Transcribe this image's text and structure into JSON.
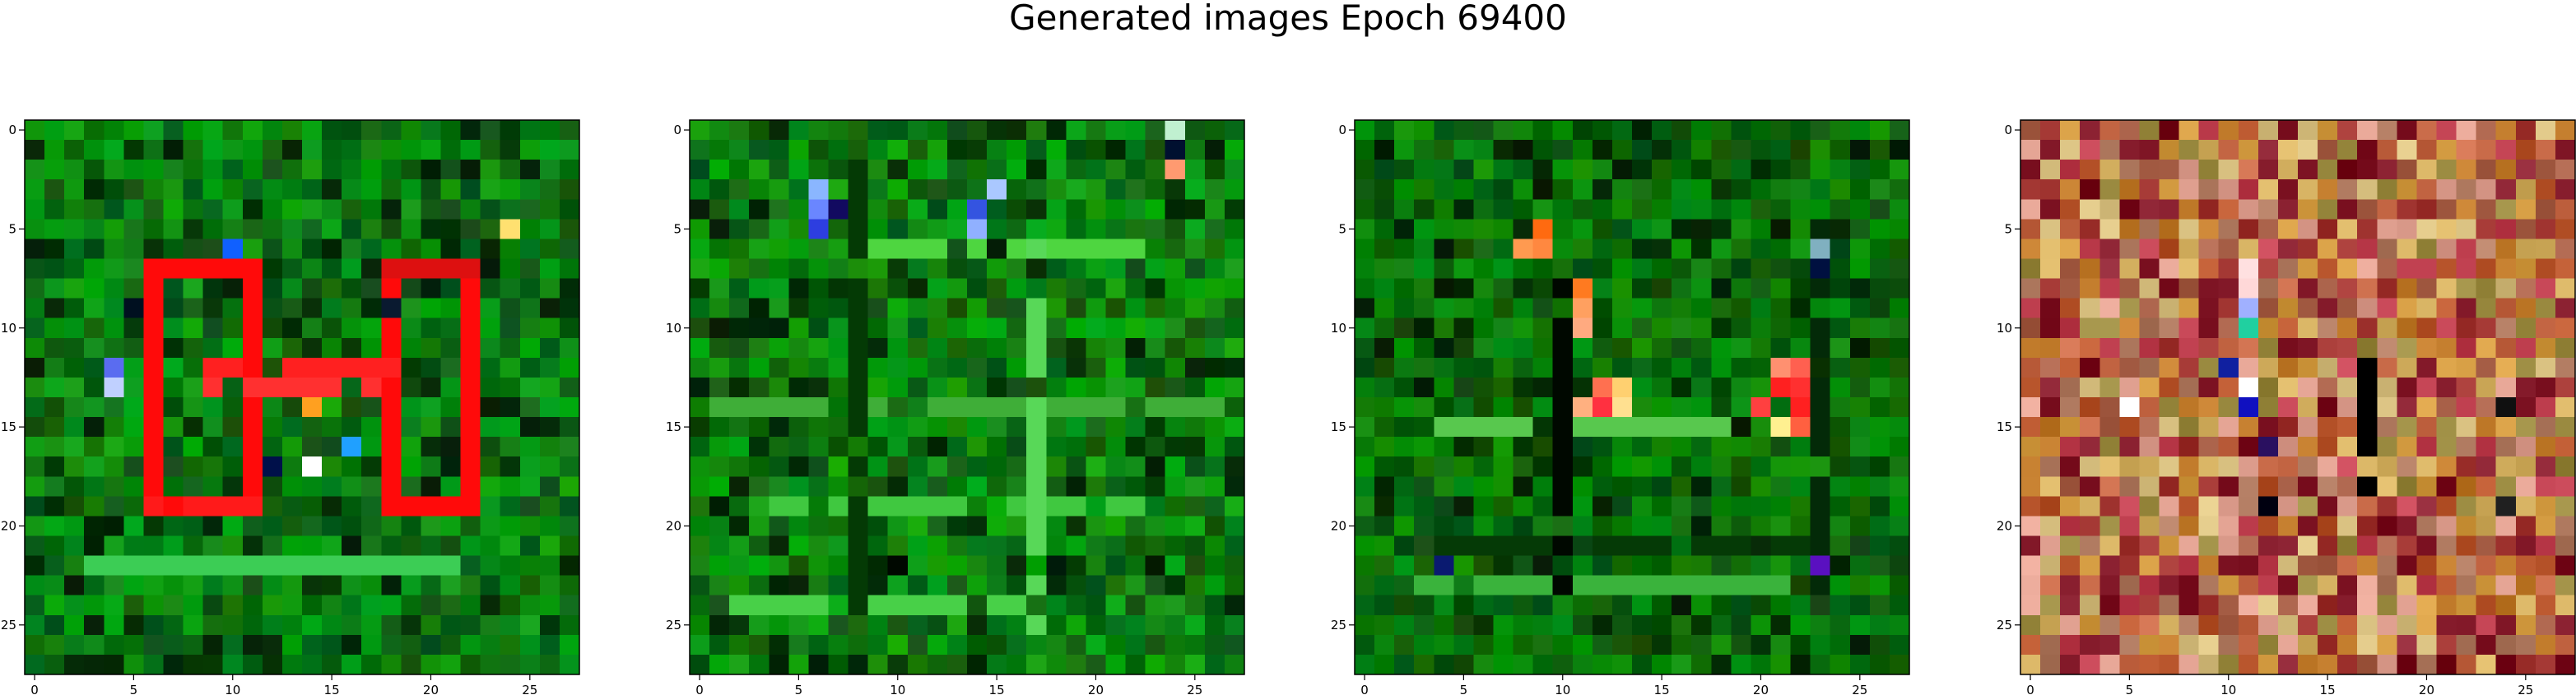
{
  "title": "Generated images Epoch 69400",
  "chart_data": {
    "type": "heatmap",
    "grid_size": 28,
    "xlim": [
      -0.5,
      27.5
    ],
    "ylim": [
      27.5,
      -0.5
    ],
    "x_ticks": [
      0,
      5,
      10,
      15,
      20,
      25
    ],
    "y_ticks": [
      0,
      5,
      10,
      15,
      20,
      25
    ],
    "panels": [
      {
        "index": 1,
        "style": "green",
        "base_color": "#0a7a12",
        "features": [
          {
            "kind": "rect_outline",
            "x0": 6,
            "y0": 7,
            "x1": 11,
            "y1": 19,
            "color": "#ff0a0a"
          },
          {
            "kind": "rect_outline",
            "x0": 18,
            "y0": 7,
            "x1": 22,
            "y1": 19,
            "color": "#ff0a0a"
          },
          {
            "kind": "hline",
            "row": 12,
            "x0": 9,
            "x1": 18,
            "color": "#ff2020"
          },
          {
            "kind": "hline",
            "row": 13,
            "x0": 9,
            "x1": 17,
            "color": "#ff3030"
          },
          {
            "kind": "hline",
            "row": 7,
            "x0": 18,
            "x1": 22,
            "color": "#dd1010"
          },
          {
            "kind": "hline",
            "row": 19,
            "x0": 6,
            "x1": 11,
            "color": "#ff1a1a"
          },
          {
            "kind": "hline",
            "row": 22,
            "x0": 2,
            "x1": 22,
            "color": "#3ccd55"
          },
          {
            "kind": "pixel",
            "x": 4,
            "y": 12,
            "color": "#5a6cf0"
          },
          {
            "kind": "pixel",
            "x": 4,
            "y": 13,
            "color": "#c0d0ff"
          },
          {
            "kind": "pixel",
            "x": 14,
            "y": 17,
            "color": "#ffffff"
          },
          {
            "kind": "pixel",
            "x": 10,
            "y": 6,
            "color": "#1060ff"
          },
          {
            "kind": "pixel",
            "x": 14,
            "y": 14,
            "color": "#ffa020"
          },
          {
            "kind": "pixel",
            "x": 16,
            "y": 16,
            "color": "#20a0ff"
          },
          {
            "kind": "pixel",
            "x": 24,
            "y": 5,
            "color": "#ffe070"
          },
          {
            "kind": "pixel",
            "x": 18,
            "y": 9,
            "color": "#0a1a30"
          },
          {
            "kind": "pixel",
            "x": 5,
            "y": 9,
            "color": "#001020"
          },
          {
            "kind": "pixel",
            "x": 12,
            "y": 17,
            "color": "#00104a"
          }
        ]
      },
      {
        "index": 2,
        "style": "green",
        "base_color": "#0c7d10",
        "features": [
          {
            "kind": "hline",
            "row": 6,
            "x0": 8,
            "x1": 22,
            "color": "#4ed640"
          },
          {
            "kind": "hline",
            "row": 14,
            "x0": 0,
            "x1": 27,
            "color": "#3fae38"
          },
          {
            "kind": "hline",
            "row": 19,
            "x0": 4,
            "x1": 22,
            "color": "#40c840"
          },
          {
            "kind": "hline",
            "row": 24,
            "x0": 2,
            "x1": 16,
            "color": "#48d048"
          },
          {
            "kind": "vline",
            "col": 8,
            "y0": 2,
            "y1": 25,
            "color": "#043a05"
          },
          {
            "kind": "vline",
            "col": 17,
            "y0": 6,
            "y1": 25,
            "color": "#58d858"
          },
          {
            "kind": "pixel",
            "x": 6,
            "y": 3,
            "color": "#8ab6ff"
          },
          {
            "kind": "pixel",
            "x": 6,
            "y": 4,
            "color": "#6a86ff"
          },
          {
            "kind": "pixel",
            "x": 6,
            "y": 5,
            "color": "#2d3ee0"
          },
          {
            "kind": "pixel",
            "x": 7,
            "y": 4,
            "color": "#120a60"
          },
          {
            "kind": "pixel",
            "x": 14,
            "y": 4,
            "color": "#3454e0"
          },
          {
            "kind": "pixel",
            "x": 15,
            "y": 3,
            "color": "#aac8ff"
          },
          {
            "kind": "pixel",
            "x": 14,
            "y": 5,
            "color": "#90b0ff"
          },
          {
            "kind": "pixel",
            "x": 24,
            "y": 0,
            "color": "#c0f0d0"
          },
          {
            "kind": "pixel",
            "x": 24,
            "y": 1,
            "color": "#001030"
          },
          {
            "kind": "pixel",
            "x": 24,
            "y": 2,
            "color": "#ff9a70"
          },
          {
            "kind": "pixel",
            "x": 10,
            "y": 22,
            "color": "#000800"
          }
        ]
      },
      {
        "index": 3,
        "style": "green",
        "base_color": "#096e0a",
        "features": [
          {
            "kind": "hline",
            "row": 15,
            "x0": 4,
            "x1": 22,
            "color": "#58c84e"
          },
          {
            "kind": "hline",
            "row": 23,
            "x0": 3,
            "x1": 23,
            "color": "#3ab33c"
          },
          {
            "kind": "hline",
            "row": 21,
            "x0": 4,
            "x1": 22,
            "color": "#053a06"
          },
          {
            "kind": "vline",
            "col": 10,
            "y0": 8,
            "y1": 23,
            "color": "#000800"
          },
          {
            "kind": "vline",
            "col": 23,
            "y0": 5,
            "y1": 23,
            "color": "#032a08"
          },
          {
            "kind": "pixel",
            "x": 9,
            "y": 5,
            "color": "#ff6a10"
          },
          {
            "kind": "pixel",
            "x": 8,
            "y": 6,
            "color": "#ff9a50"
          },
          {
            "kind": "pixel",
            "x": 9,
            "y": 6,
            "color": "#ff8840"
          },
          {
            "kind": "pixel",
            "x": 11,
            "y": 8,
            "color": "#ff7a20"
          },
          {
            "kind": "pixel",
            "x": 11,
            "y": 9,
            "color": "#ffa060"
          },
          {
            "kind": "pixel",
            "x": 11,
            "y": 10,
            "color": "#ffaa80"
          },
          {
            "kind": "pixel",
            "x": 12,
            "y": 13,
            "color": "#ff7050"
          },
          {
            "kind": "pixel",
            "x": 13,
            "y": 13,
            "color": "#ffd070"
          },
          {
            "kind": "pixel",
            "x": 11,
            "y": 14,
            "color": "#ffb080"
          },
          {
            "kind": "pixel",
            "x": 12,
            "y": 14,
            "color": "#ff3040"
          },
          {
            "kind": "pixel",
            "x": 13,
            "y": 14,
            "color": "#ffe090"
          },
          {
            "kind": "pixel",
            "x": 21,
            "y": 12,
            "color": "#ff9070"
          },
          {
            "kind": "pixel",
            "x": 22,
            "y": 12,
            "color": "#ff6050"
          },
          {
            "kind": "pixel",
            "x": 21,
            "y": 13,
            "color": "#ff2020"
          },
          {
            "kind": "pixel",
            "x": 22,
            "y": 13,
            "color": "#ff3030"
          },
          {
            "kind": "pixel",
            "x": 20,
            "y": 14,
            "color": "#ff4040"
          },
          {
            "kind": "pixel",
            "x": 22,
            "y": 14,
            "color": "#ff2020"
          },
          {
            "kind": "pixel",
            "x": 21,
            "y": 15,
            "color": "#fff090"
          },
          {
            "kind": "pixel",
            "x": 22,
            "y": 15,
            "color": "#ff6040"
          },
          {
            "kind": "pixel",
            "x": 23,
            "y": 22,
            "color": "#5a10c0"
          },
          {
            "kind": "pixel",
            "x": 4,
            "y": 22,
            "color": "#0a1a70"
          },
          {
            "kind": "pixel",
            "x": 23,
            "y": 6,
            "color": "#80b0c0"
          },
          {
            "kind": "pixel",
            "x": 23,
            "y": 7,
            "color": "#001040"
          }
        ]
      },
      {
        "index": 4,
        "style": "noise",
        "base_color": "#c07a2a",
        "features": [
          {
            "kind": "vline",
            "col": 17,
            "y0": 12,
            "y1": 20,
            "color": "#000000"
          },
          {
            "kind": "pixel",
            "x": 11,
            "y": 7,
            "color": "#ffe0e0"
          },
          {
            "kind": "pixel",
            "x": 11,
            "y": 8,
            "color": "#ffd8d8"
          },
          {
            "kind": "pixel",
            "x": 11,
            "y": 9,
            "color": "#a0b0ff"
          },
          {
            "kind": "pixel",
            "x": 11,
            "y": 10,
            "color": "#20d0a0"
          },
          {
            "kind": "pixel",
            "x": 10,
            "y": 12,
            "color": "#1020a0"
          },
          {
            "kind": "pixel",
            "x": 11,
            "y": 13,
            "color": "#ffffff"
          },
          {
            "kind": "pixel",
            "x": 11,
            "y": 14,
            "color": "#1010c0"
          },
          {
            "kind": "pixel",
            "x": 5,
            "y": 14,
            "color": "#ffffff"
          },
          {
            "kind": "pixel",
            "x": 12,
            "y": 16,
            "color": "#2a1060"
          },
          {
            "kind": "pixel",
            "x": 12,
            "y": 19,
            "color": "#000010"
          },
          {
            "kind": "pixel",
            "x": 24,
            "y": 14,
            "color": "#101010"
          },
          {
            "kind": "pixel",
            "x": 24,
            "y": 19,
            "color": "#202020"
          }
        ]
      }
    ]
  }
}
